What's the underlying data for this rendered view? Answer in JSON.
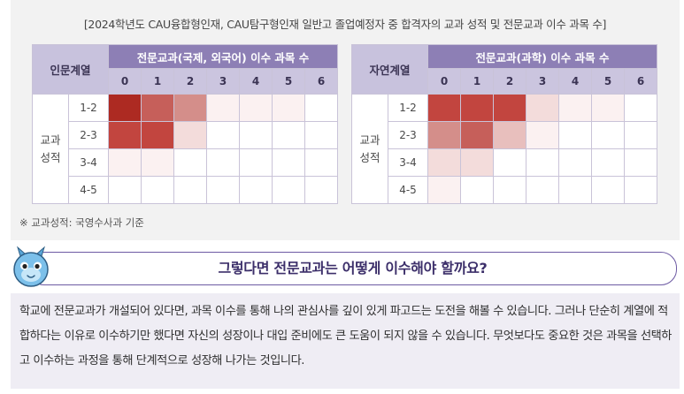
{
  "caption": "[2024학년도 CAU융합형인재, CAU탐구형인재 일반고 졸업예정자 중 합격자의 교과 성적 및 전문교과 이수 과목 수]",
  "colors": {
    "header_dark": "#8d7fb5",
    "header_light": "#cbc5df",
    "shade_levels": [
      "#ffffff",
      "#fbf1f1",
      "#f3dcdb",
      "#e8bfbd",
      "#d48e8a",
      "#c65f5a",
      "#c2453f",
      "#ad2a22"
    ]
  },
  "tables": [
    {
      "track": "인문계열",
      "subject_header": "전문교과(국제, 외국어) 이수 과목 수",
      "columns": [
        "0",
        "1",
        "2",
        "3",
        "4",
        "5",
        "6"
      ],
      "group_label_line1": "교과",
      "group_label_line2": "성적",
      "rows": [
        {
          "label": "1-2",
          "shades": [
            7,
            5,
            4,
            1,
            1,
            1,
            0
          ]
        },
        {
          "label": "2-3",
          "shades": [
            6,
            6,
            2,
            0,
            0,
            0,
            0
          ]
        },
        {
          "label": "3-4",
          "shades": [
            1,
            1,
            0,
            0,
            0,
            0,
            0
          ]
        },
        {
          "label": "4-5",
          "shades": [
            0,
            0,
            0,
            0,
            0,
            0,
            0
          ]
        }
      ]
    },
    {
      "track": "자연계열",
      "subject_header": "전문교과(과학) 이수 과목 수",
      "columns": [
        "0",
        "1",
        "2",
        "3",
        "4",
        "5",
        "6"
      ],
      "group_label_line1": "교과",
      "group_label_line2": "성적",
      "rows": [
        {
          "label": "1-2",
          "shades": [
            6,
            6,
            6,
            2,
            1,
            1,
            0
          ]
        },
        {
          "label": "2-3",
          "shades": [
            4,
            5,
            3,
            1,
            0,
            0,
            0
          ]
        },
        {
          "label": "3-4",
          "shades": [
            2,
            2,
            0,
            0,
            0,
            0,
            0
          ]
        },
        {
          "label": "4-5",
          "shades": [
            1,
            0,
            0,
            0,
            0,
            0,
            0
          ]
        }
      ]
    }
  ],
  "footnote": "※ 교과성적: 국영수사과 기준",
  "question": "그렇다면 전문교과는 어떻게 이수해야 할까요?",
  "paragraph": "학교에 전문교과가 개설되어 있다면, 과목 이수를 통해 나의 관심사를 깊이 있게 파고드는 도전을 해볼 수 있습니다. 그러나 단순히 계열에 적합하다는 이유로 이수하기만 했다면 자신의 성장이나 대입 준비에도 큰 도움이 되지 않을 수 있습니다. 무엇보다도 중요한 것은 과목을 선택하고 이수하는 과정을 통해 단계적으로 성장해 나가는 것입니다."
}
